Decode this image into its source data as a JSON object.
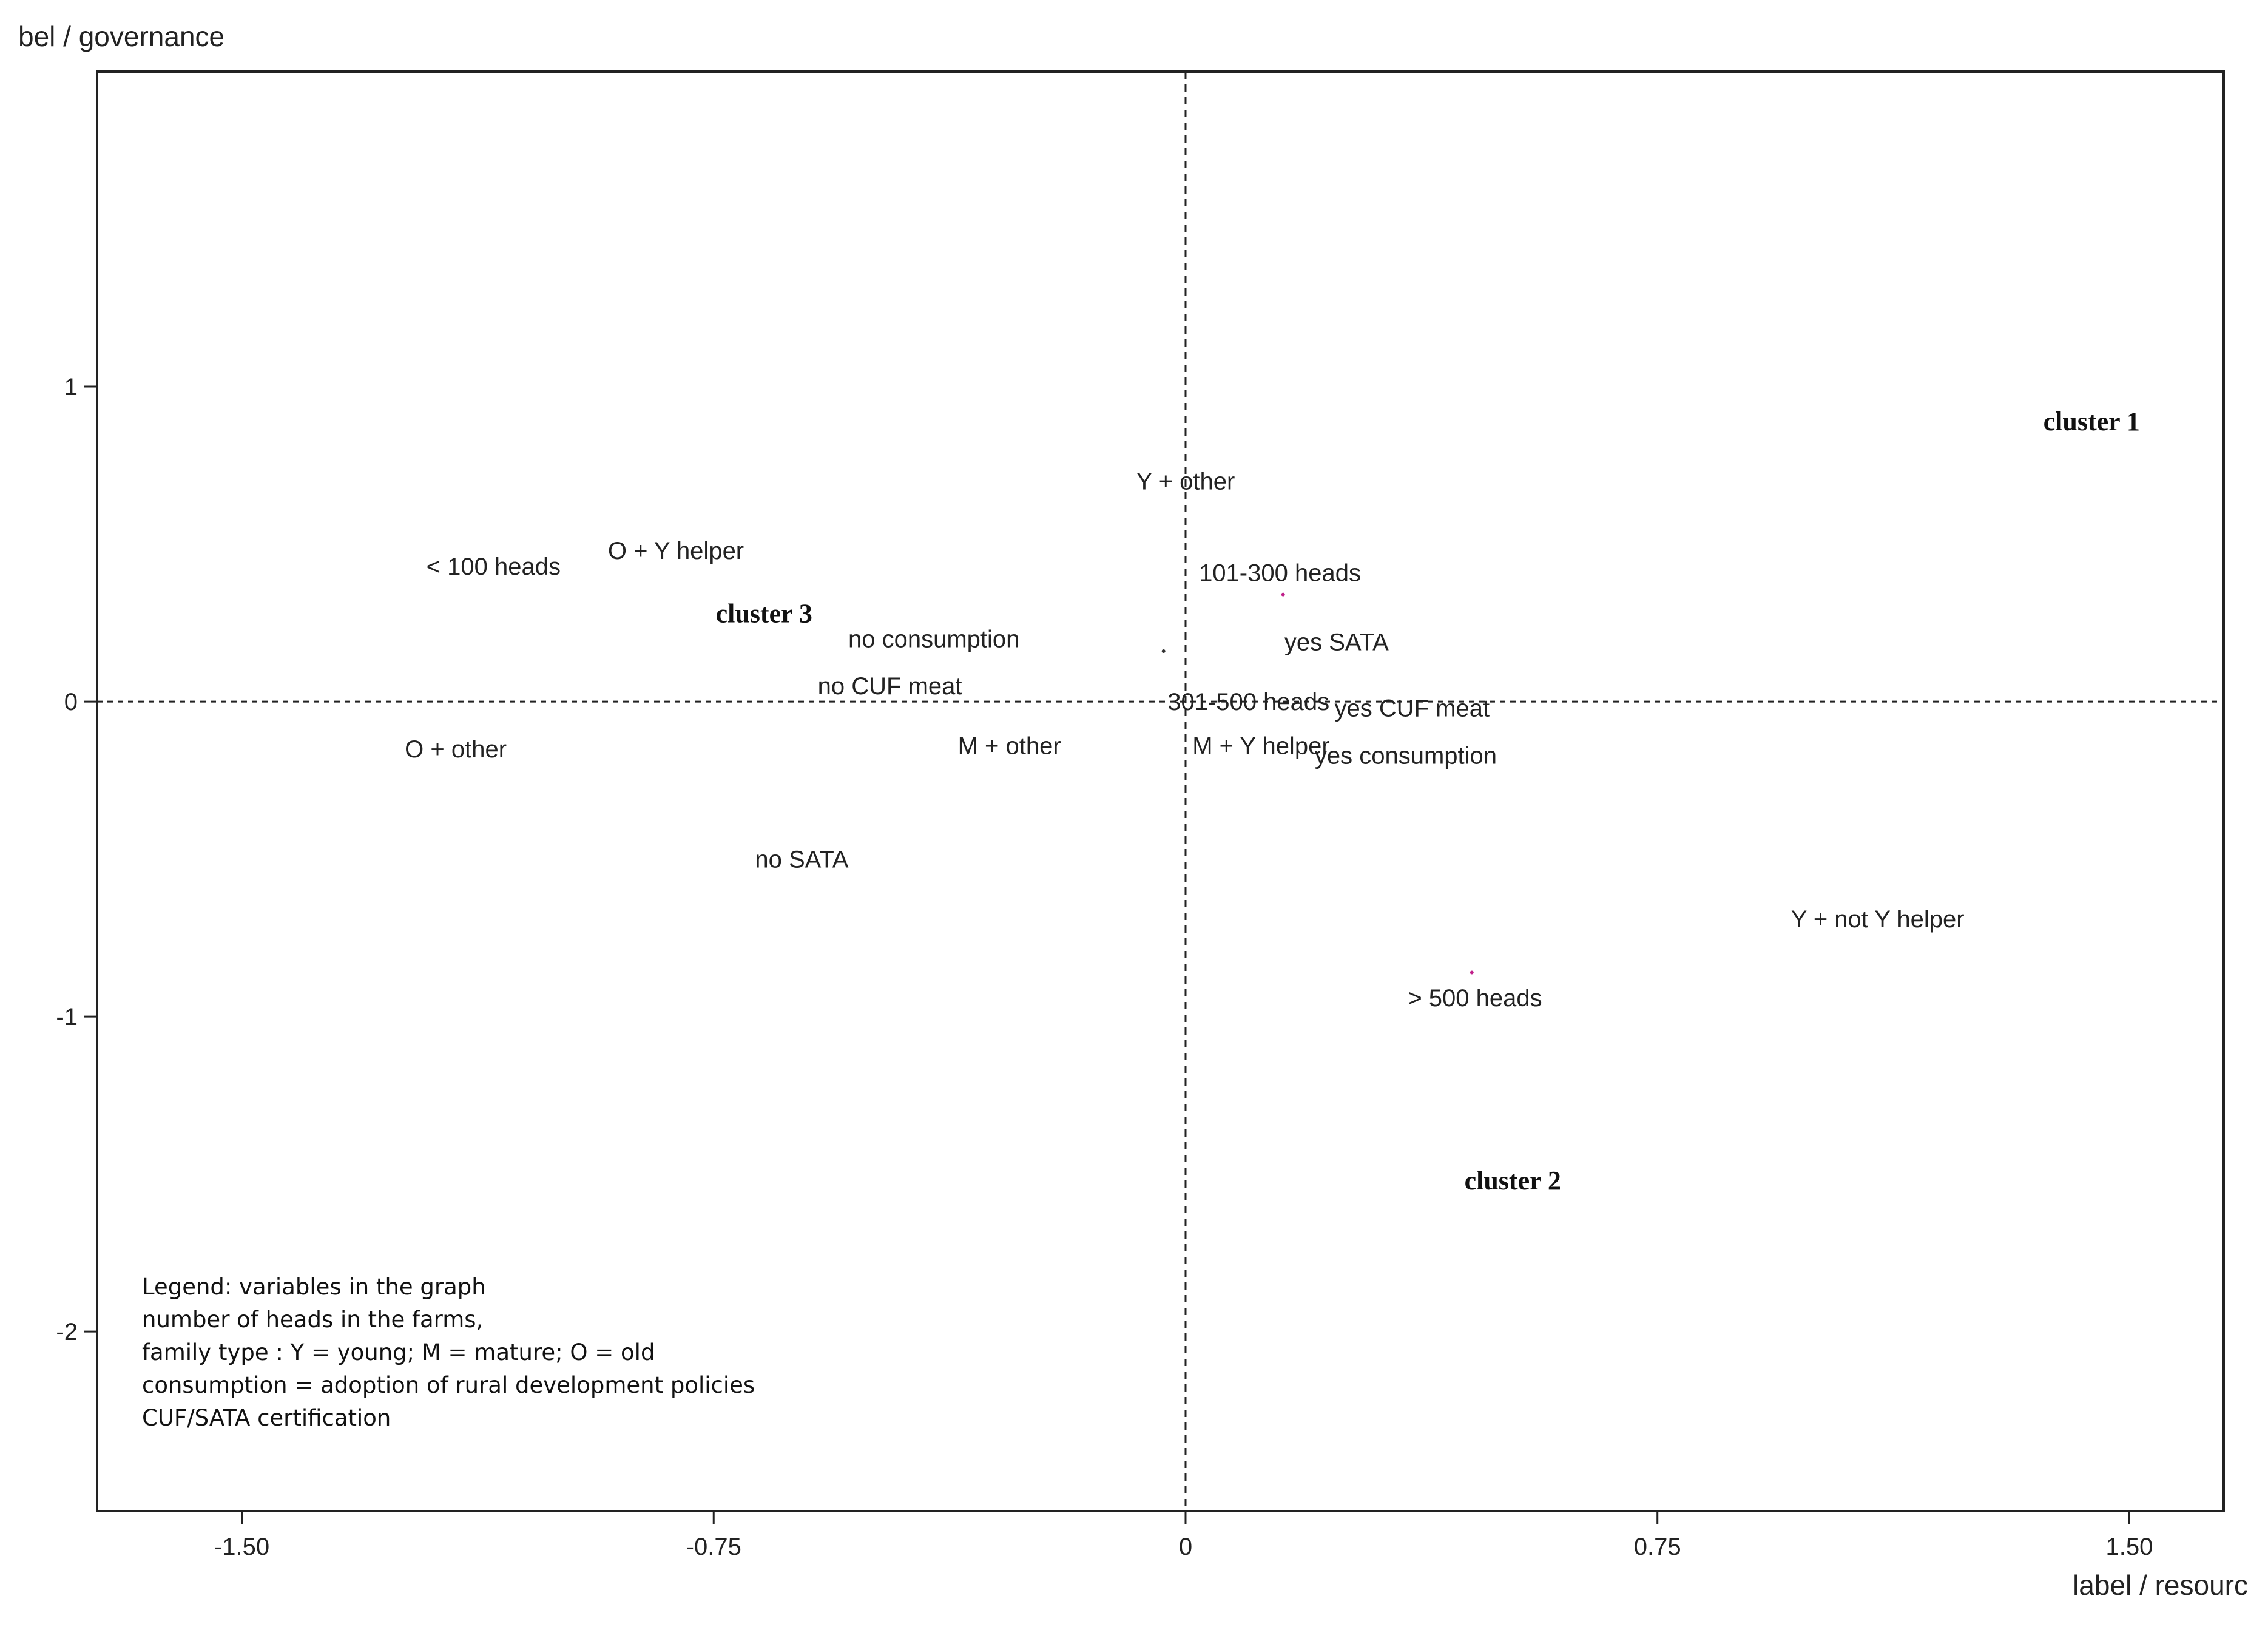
{
  "chart_data": {
    "type": "scatter",
    "xlabel": "label / resourc",
    "ylabel": "bel / governance",
    "xlim": [
      -1.73,
      1.65
    ],
    "ylim": [
      -2.57,
      2.0
    ],
    "x_ticks": [
      {
        "value": -1.5,
        "label": "-1.50"
      },
      {
        "value": -0.75,
        "label": "-0.75"
      },
      {
        "value": 0,
        "label": "0"
      },
      {
        "value": 0.75,
        "label": "0.75"
      },
      {
        "value": 1.5,
        "label": "1.50"
      }
    ],
    "y_ticks": [
      {
        "value": 1,
        "label": "1"
      },
      {
        "value": 0,
        "label": "0"
      },
      {
        "value": -1,
        "label": "-1"
      },
      {
        "value": -2,
        "label": "-2"
      }
    ],
    "reference_lines": {
      "x": 0,
      "y": 0,
      "style": "dashed"
    },
    "points": [
      {
        "label": "Y + other",
        "x": 0.0,
        "y": 0.7
      },
      {
        "label": "< 100 heads",
        "x": -1.1,
        "y": 0.43
      },
      {
        "label": "O + Y helper",
        "x": -0.81,
        "y": 0.48
      },
      {
        "label": "101-300 heads",
        "x": 0.15,
        "y": 0.41
      },
      {
        "label": "no consumption",
        "x": -0.4,
        "y": 0.2
      },
      {
        "label": "yes SATA",
        "x": 0.24,
        "y": 0.19
      },
      {
        "label": "no CUF meat",
        "x": -0.47,
        "y": 0.05
      },
      {
        "label": "301-500 heads",
        "x": 0.1,
        "y": 0.0
      },
      {
        "label": "yes CUF meat",
        "x": 0.36,
        "y": -0.02
      },
      {
        "label": "O + other",
        "x": -1.16,
        "y": -0.15
      },
      {
        "label": "M + other",
        "x": -0.28,
        "y": -0.14
      },
      {
        "label": "M + Y helper",
        "x": 0.12,
        "y": -0.14
      },
      {
        "label": "yes consumption",
        "x": 0.35,
        "y": -0.17
      },
      {
        "label": "no SATA",
        "x": -0.61,
        "y": -0.5
      },
      {
        "label": "Y + not Y helper",
        "x": 1.1,
        "y": -0.69
      },
      {
        "label": "> 500 heads",
        "x": 0.46,
        "y": -0.94
      }
    ],
    "markers": [
      {
        "x": 0.155,
        "y": 0.34,
        "color": "#c0208a"
      },
      {
        "x": -0.035,
        "y": 0.16,
        "color": "#333333"
      },
      {
        "x": 0.455,
        "y": -0.86,
        "color": "#c0208a"
      }
    ],
    "clusters": [
      {
        "label": "cluster 1",
        "x": 1.44,
        "y": 0.89
      },
      {
        "label": "cluster 2",
        "x": 0.52,
        "y": -1.52
      },
      {
        "label": "cluster 3",
        "x": -0.67,
        "y": 0.28
      }
    ],
    "legend": {
      "lines": [
        "Legend: variables in the graph",
        "number of heads in the farms,",
        "family type : Y = young; M = mature; O = old",
        "consumption = adoption of rural development policies",
        "CUF/SATA certification"
      ]
    }
  }
}
